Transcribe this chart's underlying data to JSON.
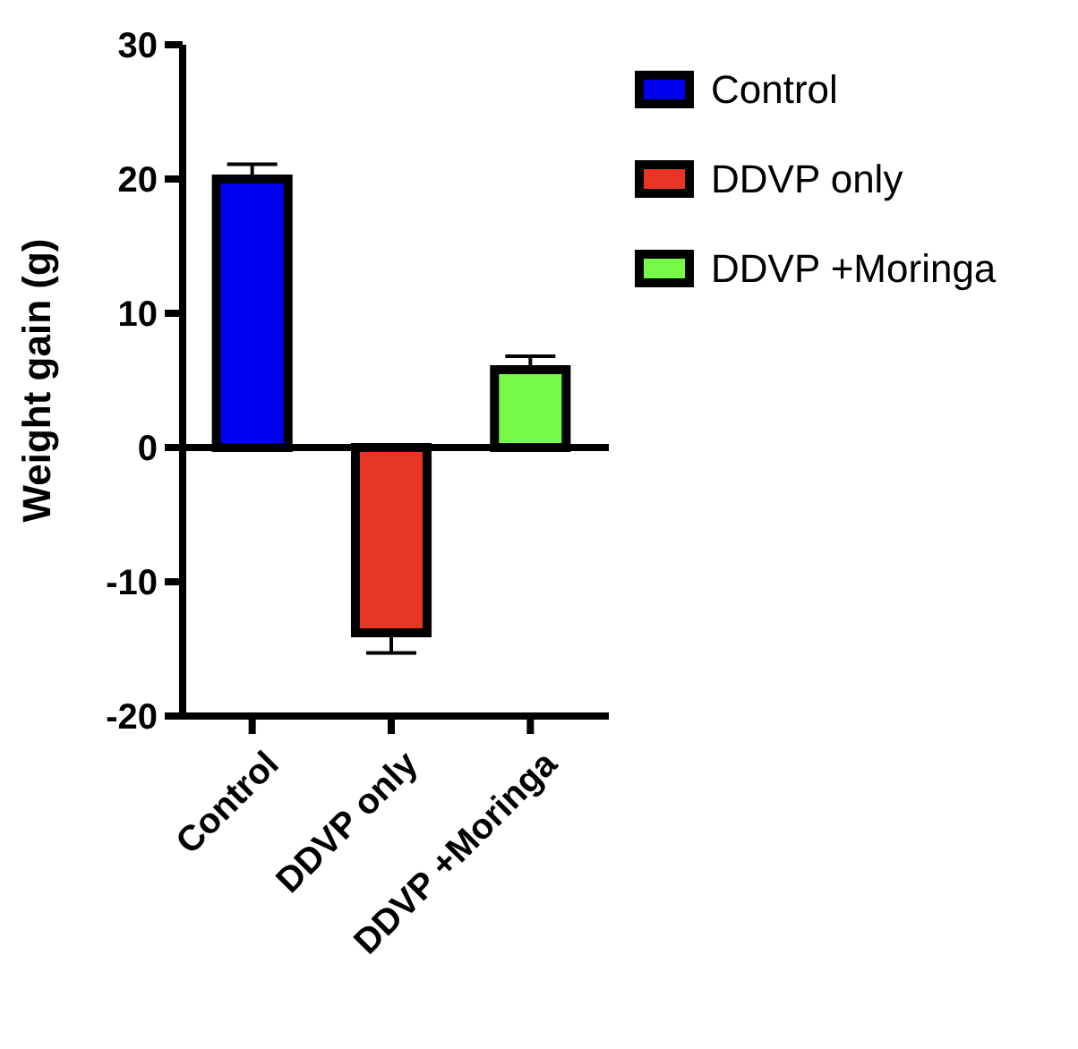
{
  "chart_data": {
    "type": "bar",
    "ylabel": "Weight gain (g)",
    "categories": [
      "Control",
      "DDVP only",
      "DDVP +Moringa"
    ],
    "series": [
      {
        "name": "Control",
        "color": "#0000f0",
        "values": [
          20,
          null,
          null
        ],
        "errors": [
          [
            20,
            21.1
          ],
          null,
          null
        ]
      },
      {
        "name": "DDVP only",
        "color": "#e83525",
        "values": [
          null,
          -13.8,
          null
        ],
        "errors": [
          null,
          [
            -15.3,
            -13.8
          ],
          null
        ]
      },
      {
        "name": "DDVP +Moringa",
        "color": "#77f94a",
        "values": [
          null,
          null,
          5.8
        ],
        "errors": [
          null,
          null,
          [
            5.8,
            6.8
          ]
        ]
      }
    ],
    "ylim": [
      -20,
      30
    ],
    "yticks": [
      -20,
      -10,
      0,
      10,
      20,
      30
    ],
    "legend": "top right"
  }
}
